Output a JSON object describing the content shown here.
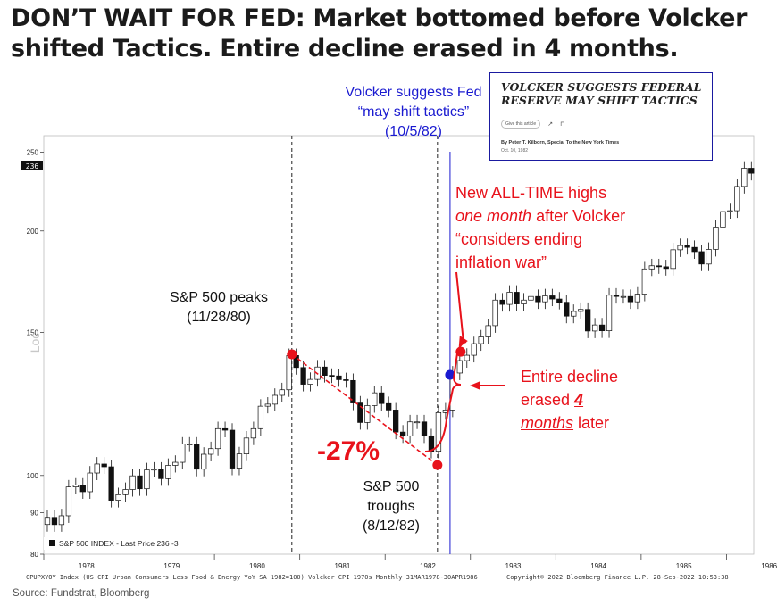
{
  "title": "DON’T WAIT FOR FED: Market bottomed before Volcker shifted Tactics. Entire decline erased in 4 months.",
  "news_clip": {
    "headline": "VOLCKER SUGGESTS FEDERAL RESERVE MAY SHIFT TACTICS",
    "gift_label": "Give this article",
    "byline": "By Peter T. Kilborn, Special To the New York Times",
    "date": "Oct. 10, 1982"
  },
  "annotations": {
    "volcker_line1": "Volcker suggests Fed",
    "volcker_line2": "“may shift tactics”",
    "volcker_line3": "(10/5/82)",
    "peak_line1": "S&P 500 peaks",
    "peak_line2": "(11/28/80)",
    "trough_line1": "S&P 500",
    "trough_line2": "troughs",
    "trough_line3": "(8/12/82)",
    "decline_pct": "-27%",
    "ath_line1": "New ALL-TIME highs",
    "ath_line2_em": "one month",
    "ath_line2_rest": " after Volcker",
    "ath_line3": "“considers ending",
    "ath_line4": "inflation war”",
    "erased_line1": "Entire decline",
    "erased_line2_pre": "erased ",
    "erased_line2_num": "4",
    "erased_line3_em": "months",
    "erased_line3_rest": " later"
  },
  "legend_label": "S&P 500 INDEX - Last Price  236   -3",
  "last_price_tag": "236",
  "axis_partial_label": "Loc",
  "footer_left": "CPUPXYOY Index (US CPI Urban Consumers Less Food & Energy YoY SA 1982=100) Volcker CPI 1970s  Monthly 31MAR1978-30APR1986",
  "footer_right": "Copyright© 2022 Bloomberg Finance L.P.        28-Sep-2022 10:53:38",
  "source": "Source: Fundstrat, Bloomberg",
  "colors": {
    "annotation_red": "#e8121b",
    "volcker_blue": "#1a1ad0",
    "candle": "#111111"
  },
  "chart_data": {
    "type": "candlestick",
    "title": "S&P 500 INDEX",
    "scale": "log",
    "ylim": [
      80,
      262
    ],
    "y_ticks": [
      80,
      90,
      100,
      150,
      200,
      250
    ],
    "x_ticks": [
      "1978",
      "1979",
      "1980",
      "1981",
      "1982",
      "1983",
      "1984",
      "1985",
      "1986"
    ],
    "x_range": [
      1978.0,
      1986.32
    ],
    "grid": false,
    "markers": [
      {
        "label": "S&P 500 peaks",
        "date": "1980-11-28",
        "value": 141
      },
      {
        "label": "S&P 500 troughs",
        "date": "1982-08-12",
        "value": 103
      },
      {
        "label": "Volcker suggests Fed may shift tactics",
        "date": "1982-10-05",
        "value": 133
      },
      {
        "label": "New all-time high",
        "date": "1982-11",
        "value": 142
      }
    ],
    "vertical_lines": [
      {
        "date": "1980-11-28",
        "style": "dashed"
      },
      {
        "date": "1982-08-12",
        "style": "dashed"
      },
      {
        "date": "1982-10-05",
        "style": "solid"
      }
    ],
    "monthly_close": [
      88.8,
      87.0,
      89.2,
      96.8,
      97.3,
      95.5,
      100.7,
      103.3,
      102.5,
      93.2,
      94.7,
      96.1,
      99.9,
      96.3,
      101.6,
      101.8,
      99.1,
      102.9,
      103.8,
      109.3,
      109.3,
      101.8,
      106.2,
      107.9,
      114.2,
      113.7,
      102.1,
      106.3,
      111.2,
      114.2,
      121.7,
      122.4,
      125.5,
      127.5,
      140.5,
      135.8,
      129.5,
      131.3,
      136.0,
      132.8,
      132.6,
      131.2,
      130.9,
      122.8,
      116.2,
      121.9,
      126.4,
      122.6,
      120.4,
      113.1,
      111.9,
      116.4,
      116.4,
      111.9,
      107.1,
      119.5,
      120.4,
      133.7,
      138.5,
      140.6,
      145.3,
      148.1,
      152.9,
      164.4,
      162.4,
      168.1,
      162.6,
      164.4,
      166.1,
      163.6,
      166.4,
      164.9,
      163.4,
      157.1,
      159.2,
      160.1,
      150.6,
      153.2,
      150.7,
      166.7,
      166.1,
      166.1,
      163.6,
      167.2,
      179.6,
      181.2,
      180.7,
      179.8,
      189.6,
      191.9,
      190.9,
      188.6,
      182.1,
      189.8,
      202.2,
      211.3,
      211.8,
      226.9,
      238.9,
      235.5
    ]
  }
}
